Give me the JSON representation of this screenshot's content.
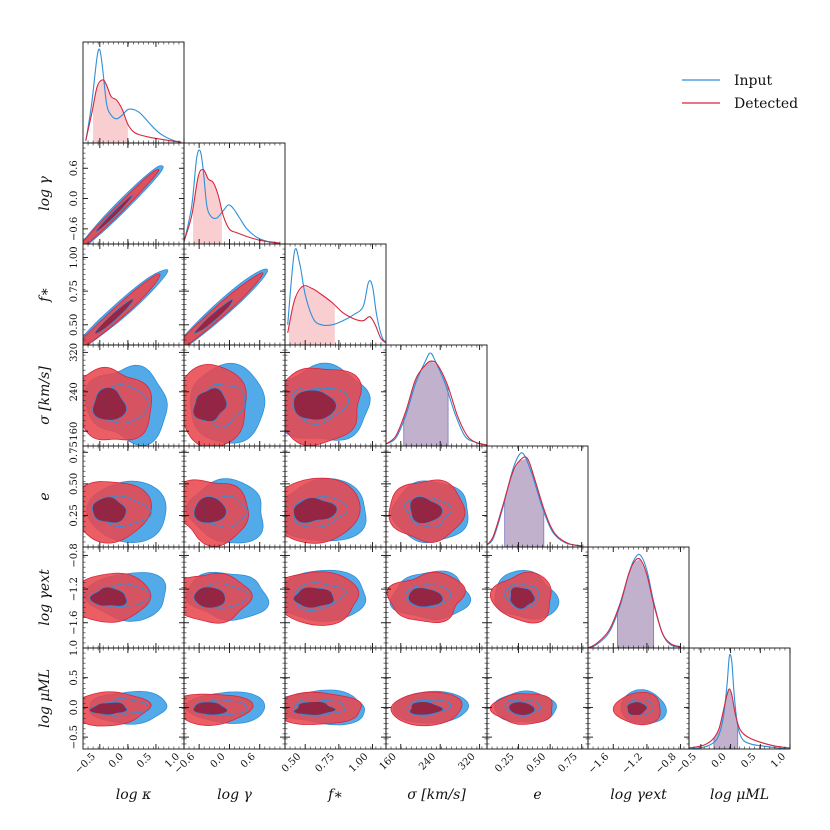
{
  "chart_data": {
    "type": "corner",
    "title": "",
    "parameters": [
      {
        "key": "logk",
        "label": "log κ",
        "range": [
          -0.8,
          1.0
        ],
        "ticks": [
          {
            "v": -0.5,
            "t": "−0.5"
          },
          {
            "v": 0.0,
            "t": "0.0"
          },
          {
            "v": 0.5,
            "t": "0.5"
          },
          {
            "v": 1.0,
            "t": "1.0"
          }
        ],
        "mean_input": -0.05,
        "mean_detected": -0.3,
        "sd": 0.32
      },
      {
        "key": "logg",
        "label": "log γ",
        "range": [
          -0.9,
          1.1
        ],
        "ticks": [
          {
            "v": -0.6,
            "t": "−0.6"
          },
          {
            "v": 0.0,
            "t": "0.0"
          },
          {
            "v": 0.6,
            "t": "0.6"
          }
        ],
        "mean_input": -0.1,
        "mean_detected": -0.35,
        "sd": 0.35
      },
      {
        "key": "fstar",
        "label": "f∗",
        "range": [
          0.35,
          1.1
        ],
        "ticks": [
          {
            "v": 0.5,
            "t": "0.50"
          },
          {
            "v": 0.75,
            "t": "0.75"
          },
          {
            "v": 1.0,
            "t": "1.00"
          }
        ],
        "mean_input": 0.6,
        "mean_detected": 0.58,
        "sd": 0.2
      },
      {
        "key": "sigma",
        "label": "σ [km/s]",
        "range": [
          130,
          335
        ],
        "ticks": [
          {
            "v": 160,
            "t": "160"
          },
          {
            "v": 240,
            "t": "240"
          },
          {
            "v": 320,
            "t": "320"
          }
        ],
        "mean_input": 215,
        "mean_detected": 213,
        "sd": 35
      },
      {
        "key": "e",
        "label": "e",
        "range": [
          0.0,
          0.8
        ],
        "ticks": [
          {
            "v": 0.25,
            "t": "0.25"
          },
          {
            "v": 0.5,
            "t": "0.50"
          },
          {
            "v": 0.75,
            "t": "0.75"
          }
        ],
        "mean_input": 0.28,
        "mean_detected": 0.29,
        "sd": 0.11
      },
      {
        "key": "gext",
        "label": "log γext",
        "range": [
          -1.9,
          -0.7
        ],
        "ticks": [
          {
            "v": -1.6,
            "t": "−1.6"
          },
          {
            "v": -1.2,
            "t": "−1.2"
          },
          {
            "v": -0.8,
            "t": "−0.8"
          }
        ],
        "mean_input": -1.28,
        "mean_detected": -1.3,
        "sd": 0.13
      },
      {
        "key": "mu",
        "label": "log μML",
        "range": [
          -0.7,
          1.0
        ],
        "ticks": [
          {
            "v": -0.5,
            "t": "−0.5"
          },
          {
            "v": 0.0,
            "t": "0.0"
          },
          {
            "v": 0.5,
            "t": "0.5"
          },
          {
            "v": 1.0,
            "t": "1.0"
          }
        ],
        "mean_input": 0.0,
        "mean_detected": -0.02,
        "sd": 0.12
      }
    ],
    "y_axis_ticks": {
      "logg": [
        {
          "v": -0.6,
          "t": "−0.6"
        },
        {
          "v": 0.0,
          "t": "0.0"
        },
        {
          "v": 0.6,
          "t": "0.6"
        }
      ],
      "fstar": [
        {
          "v": 0.5,
          "t": "0.50"
        },
        {
          "v": 0.75,
          "t": "0.75"
        },
        {
          "v": 1.0,
          "t": "1.00"
        }
      ],
      "sigma": [
        {
          "v": 160,
          "t": "160"
        },
        {
          "v": 240,
          "t": "240"
        },
        {
          "v": 320,
          "t": "320"
        }
      ],
      "e": [
        {
          "v": 0.25,
          "t": "0.25"
        },
        {
          "v": 0.5,
          "t": "0.50"
        },
        {
          "v": 0.75,
          "t": "0.75"
        }
      ],
      "gext": [
        {
          "v": -1.6,
          "t": "−1.6"
        },
        {
          "v": -1.2,
          "t": "−1.2"
        },
        {
          "v": -0.8,
          "t": "−0.8"
        }
      ],
      "mu": [
        {
          "v": -0.5,
          "t": "−0.5"
        },
        {
          "v": 0.0,
          "t": "0.0"
        },
        {
          "v": 0.5,
          "t": "0.5"
        },
        {
          "v": 1.0,
          "t": "1.0"
        }
      ]
    },
    "marginals": {
      "logk": {
        "input": [
          [
            -0.75,
            0.02
          ],
          [
            -0.65,
            0.4
          ],
          [
            -0.55,
            0.92
          ],
          [
            -0.5,
            1.0
          ],
          [
            -0.45,
            0.8
          ],
          [
            -0.38,
            0.42
          ],
          [
            -0.3,
            0.3
          ],
          [
            -0.2,
            0.26
          ],
          [
            -0.1,
            0.3
          ],
          [
            0.0,
            0.36
          ],
          [
            0.1,
            0.36
          ],
          [
            0.2,
            0.33
          ],
          [
            0.3,
            0.27
          ],
          [
            0.45,
            0.17
          ],
          [
            0.6,
            0.09
          ],
          [
            0.8,
            0.03
          ],
          [
            0.95,
            0.01
          ]
        ],
        "detected": [
          [
            -0.75,
            0.03
          ],
          [
            -0.65,
            0.3
          ],
          [
            -0.55,
            0.6
          ],
          [
            -0.45,
            0.68
          ],
          [
            -0.38,
            0.62
          ],
          [
            -0.3,
            0.5
          ],
          [
            -0.2,
            0.46
          ],
          [
            -0.1,
            0.36
          ],
          [
            0.0,
            0.2
          ],
          [
            0.1,
            0.12
          ],
          [
            0.2,
            0.09
          ],
          [
            0.4,
            0.06
          ],
          [
            0.6,
            0.04
          ],
          [
            0.8,
            0.02
          ],
          [
            0.95,
            0.01
          ]
        ],
        "interval": [
          -0.62,
          0.0
        ]
      },
      "logg": {
        "input": [
          [
            -0.9,
            0.02
          ],
          [
            -0.75,
            0.4
          ],
          [
            -0.65,
            0.92
          ],
          [
            -0.58,
            1.0
          ],
          [
            -0.52,
            0.8
          ],
          [
            -0.45,
            0.42
          ],
          [
            -0.37,
            0.3
          ],
          [
            -0.25,
            0.28
          ],
          [
            -0.12,
            0.36
          ],
          [
            -0.02,
            0.42
          ],
          [
            0.08,
            0.38
          ],
          [
            0.2,
            0.28
          ],
          [
            0.35,
            0.16
          ],
          [
            0.55,
            0.07
          ],
          [
            0.8,
            0.02
          ],
          [
            1.0,
            0.01
          ]
        ],
        "detected": [
          [
            -0.9,
            0.03
          ],
          [
            -0.75,
            0.3
          ],
          [
            -0.62,
            0.72
          ],
          [
            -0.52,
            0.8
          ],
          [
            -0.42,
            0.7
          ],
          [
            -0.32,
            0.66
          ],
          [
            -0.22,
            0.52
          ],
          [
            -0.12,
            0.3
          ],
          [
            0.0,
            0.16
          ],
          [
            0.15,
            0.12
          ],
          [
            0.35,
            0.08
          ],
          [
            0.6,
            0.04
          ],
          [
            0.85,
            0.02
          ],
          [
            1.0,
            0.01
          ]
        ],
        "interval": [
          -0.72,
          -0.15
        ]
      },
      "fstar": {
        "input": [
          [
            0.37,
            0.2
          ],
          [
            0.42,
            0.92
          ],
          [
            0.46,
            0.8
          ],
          [
            0.5,
            0.5
          ],
          [
            0.56,
            0.26
          ],
          [
            0.62,
            0.2
          ],
          [
            0.7,
            0.2
          ],
          [
            0.78,
            0.24
          ],
          [
            0.86,
            0.3
          ],
          [
            0.93,
            0.38
          ],
          [
            0.97,
            0.62
          ],
          [
            1.0,
            0.58
          ],
          [
            1.03,
            0.3
          ],
          [
            1.07,
            0.08
          ],
          [
            1.1,
            0.03
          ]
        ],
        "detected": [
          [
            0.37,
            0.12
          ],
          [
            0.42,
            0.44
          ],
          [
            0.48,
            0.58
          ],
          [
            0.55,
            0.56
          ],
          [
            0.62,
            0.5
          ],
          [
            0.7,
            0.42
          ],
          [
            0.78,
            0.32
          ],
          [
            0.86,
            0.26
          ],
          [
            0.93,
            0.24
          ],
          [
            0.98,
            0.28
          ],
          [
            1.02,
            0.2
          ],
          [
            1.06,
            0.07
          ],
          [
            1.1,
            0.02
          ]
        ],
        "interval": [
          0.38,
          0.72
        ]
      },
      "sigma": {
        "input": [
          [
            130,
            0.02
          ],
          [
            150,
            0.08
          ],
          [
            170,
            0.3
          ],
          [
            190,
            0.62
          ],
          [
            210,
            0.84
          ],
          [
            220,
            0.92
          ],
          [
            230,
            0.84
          ],
          [
            250,
            0.62
          ],
          [
            270,
            0.32
          ],
          [
            290,
            0.1
          ],
          [
            310,
            0.04
          ],
          [
            335,
            0.01
          ]
        ],
        "detected": [
          [
            130,
            0.02
          ],
          [
            150,
            0.1
          ],
          [
            170,
            0.34
          ],
          [
            190,
            0.66
          ],
          [
            210,
            0.8
          ],
          [
            222,
            0.84
          ],
          [
            235,
            0.8
          ],
          [
            255,
            0.6
          ],
          [
            275,
            0.3
          ],
          [
            295,
            0.1
          ],
          [
            315,
            0.03
          ],
          [
            335,
            0.01
          ]
        ],
        "interval": [
          166,
          256
        ]
      },
      "e": {
        "input": [
          [
            0.0,
            0.02
          ],
          [
            0.05,
            0.08
          ],
          [
            0.12,
            0.34
          ],
          [
            0.2,
            0.7
          ],
          [
            0.26,
            0.86
          ],
          [
            0.3,
            0.84
          ],
          [
            0.36,
            0.66
          ],
          [
            0.44,
            0.36
          ],
          [
            0.52,
            0.14
          ],
          [
            0.62,
            0.04
          ],
          [
            0.75,
            0.01
          ]
        ],
        "detected": [
          [
            0.0,
            0.02
          ],
          [
            0.05,
            0.1
          ],
          [
            0.12,
            0.36
          ],
          [
            0.2,
            0.68
          ],
          [
            0.26,
            0.8
          ],
          [
            0.32,
            0.82
          ],
          [
            0.38,
            0.62
          ],
          [
            0.46,
            0.32
          ],
          [
            0.54,
            0.12
          ],
          [
            0.65,
            0.03
          ],
          [
            0.75,
            0.01
          ]
        ],
        "interval": [
          0.14,
          0.45
        ]
      },
      "gext": {
        "input": [
          [
            -1.9,
            0.0
          ],
          [
            -1.8,
            0.03
          ],
          [
            -1.65,
            0.14
          ],
          [
            -1.52,
            0.38
          ],
          [
            -1.42,
            0.66
          ],
          [
            -1.35,
            0.8
          ],
          [
            -1.28,
            0.84
          ],
          [
            -1.2,
            0.7
          ],
          [
            -1.12,
            0.42
          ],
          [
            -1.02,
            0.14
          ],
          [
            -0.92,
            0.03
          ],
          [
            -0.8,
            0.01
          ]
        ],
        "detected": [
          [
            -1.9,
            0.0
          ],
          [
            -1.8,
            0.04
          ],
          [
            -1.65,
            0.16
          ],
          [
            -1.52,
            0.4
          ],
          [
            -1.42,
            0.66
          ],
          [
            -1.35,
            0.78
          ],
          [
            -1.28,
            0.8
          ],
          [
            -1.2,
            0.66
          ],
          [
            -1.12,
            0.4
          ],
          [
            -1.02,
            0.14
          ],
          [
            -0.92,
            0.04
          ],
          [
            -0.8,
            0.01
          ]
        ],
        "interval": [
          -1.55,
          -1.12
        ]
      },
      "mu": {
        "input": [
          [
            -0.7,
            0.0
          ],
          [
            -0.45,
            0.02
          ],
          [
            -0.3,
            0.06
          ],
          [
            -0.2,
            0.14
          ],
          [
            -0.12,
            0.34
          ],
          [
            -0.06,
            0.66
          ],
          [
            -0.02,
            0.96
          ],
          [
            0.02,
            0.9
          ],
          [
            0.06,
            0.56
          ],
          [
            0.12,
            0.24
          ],
          [
            0.2,
            0.1
          ],
          [
            0.35,
            0.05
          ],
          [
            0.55,
            0.03
          ],
          [
            0.8,
            0.01
          ],
          [
            1.0,
            0.0
          ]
        ],
        "detected": [
          [
            -0.7,
            0.01
          ],
          [
            -0.45,
            0.04
          ],
          [
            -0.3,
            0.1
          ],
          [
            -0.2,
            0.2
          ],
          [
            -0.12,
            0.4
          ],
          [
            -0.06,
            0.56
          ],
          [
            -0.02,
            0.62
          ],
          [
            0.02,
            0.56
          ],
          [
            0.08,
            0.36
          ],
          [
            0.16,
            0.2
          ],
          [
            0.3,
            0.12
          ],
          [
            0.5,
            0.07
          ],
          [
            0.75,
            0.03
          ],
          [
            1.0,
            0.01
          ]
        ],
        "interval": [
          -0.28,
          0.12
        ]
      }
    },
    "legend": [
      {
        "name": "Input",
        "color": "#2f8fd8"
      },
      {
        "name": "Detected",
        "color": "#d7263d"
      }
    ],
    "legend_position": "top-right",
    "colors": {
      "input_line": "#2f8fd8",
      "input_outer": "#4aa5e8",
      "input_inner": "#2a5f9a",
      "detected_line": "#d7263d",
      "detected_outer": "#e8484f",
      "detected_inner": "#8a1f3e",
      "detected_band": "#f7c5c8",
      "overlap_band": "#b6a3c4"
    },
    "contour_levels": [
      "68%",
      "95%"
    ]
  }
}
